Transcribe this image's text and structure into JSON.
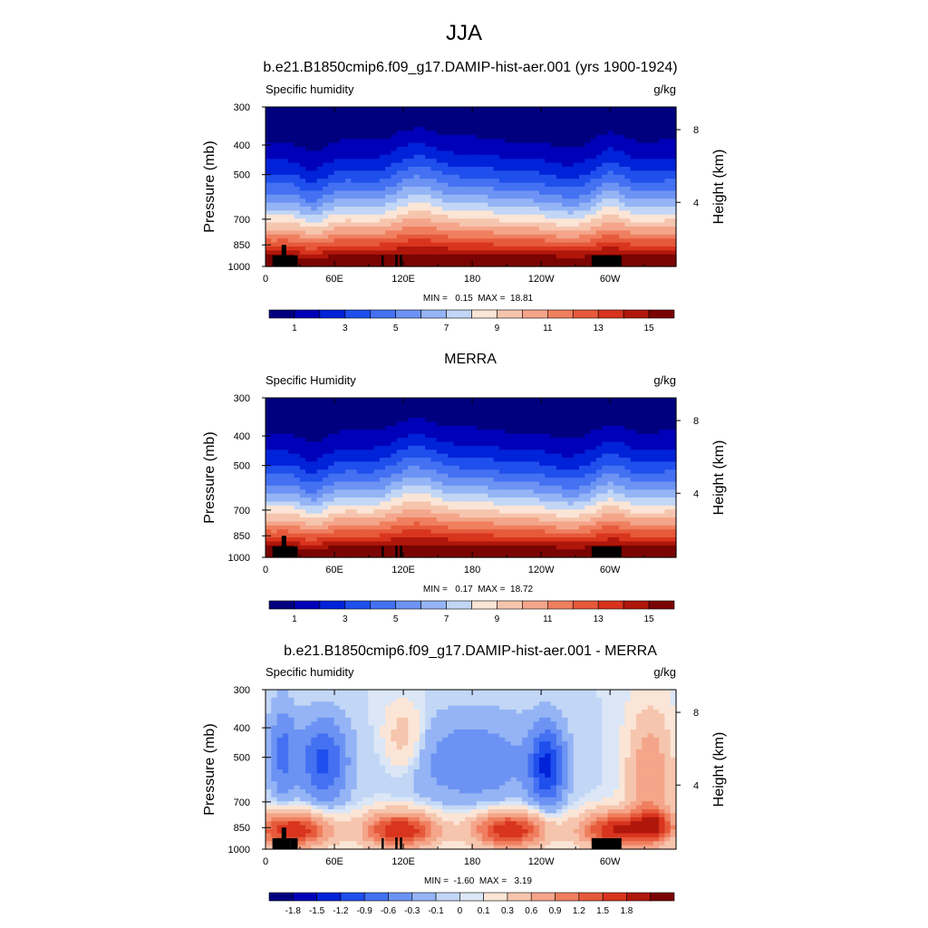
{
  "figure": {
    "title": "JJA"
  },
  "palettes": {
    "abs": [
      "#00007f",
      "#0000b8",
      "#0022d8",
      "#1f4fec",
      "#4471f2",
      "#6c93f3",
      "#94b4f5",
      "#c2d6f6",
      "#fbe5d6",
      "#f6c5ae",
      "#f4a58a",
      "#ef7f5f",
      "#e65a3b",
      "#d8341e",
      "#b0170b",
      "#7a0403"
    ],
    "diff": [
      "#00007f",
      "#0000b8",
      "#0022d8",
      "#1f4fec",
      "#4471f2",
      "#6c93f3",
      "#94b4f5",
      "#c2d6f6",
      "#dbe6f6",
      "#fbe5d6",
      "#f6c5ae",
      "#f4a58a",
      "#ef7f5f",
      "#e65a3b",
      "#d8341e",
      "#b0170b",
      "#7a0403"
    ]
  },
  "chart_data": [
    {
      "type": "heatmap",
      "panel_title": "b.e21.B1850cmip6.f09_g17.DAMIP-hist-aer.001 (yrs 1900-1924)",
      "left_label": "Specific humidity",
      "right_label": "g/kg",
      "ylabel": "Pressure (mb)",
      "y2label": "Height (km)",
      "x_ticks": [
        "0",
        "60E",
        "120E",
        "180",
        "120W",
        "60W"
      ],
      "x_tick_values": [
        0,
        60,
        120,
        180,
        240,
        300
      ],
      "xlim": [
        0,
        357.5
      ],
      "y_ticks": [
        "300",
        "400",
        "500",
        "700",
        "850",
        "1000"
      ],
      "y_tick_values": [
        300,
        400,
        500,
        700,
        850,
        1000
      ],
      "ylim": [
        300,
        1000
      ],
      "y2_ticks": [
        "8",
        "4"
      ],
      "y2_tick_values": [
        8,
        4
      ],
      "stats": "MIN =   0.15  MAX =  18.81",
      "min": 0.15,
      "max": 18.81,
      "colorbar_levels": [
        0,
        1,
        2,
        3,
        4,
        5,
        6,
        7,
        8,
        9,
        10,
        11,
        12,
        13,
        14,
        15
      ],
      "colorbar_labels": [
        "1",
        "3",
        "5",
        "7",
        "9",
        "11",
        "13",
        "15"
      ],
      "palette": "abs",
      "field": "model"
    },
    {
      "type": "heatmap",
      "panel_title": "MERRA",
      "left_label": "Specific Humidity",
      "right_label": "g/kg",
      "ylabel": "Pressure (mb)",
      "y2label": "Height (km)",
      "x_ticks": [
        "0",
        "60E",
        "120E",
        "180",
        "120W",
        "60W"
      ],
      "x_tick_values": [
        0,
        60,
        120,
        180,
        240,
        300
      ],
      "xlim": [
        0,
        357.5
      ],
      "y_ticks": [
        "300",
        "400",
        "500",
        "700",
        "850",
        "1000"
      ],
      "y_tick_values": [
        300,
        400,
        500,
        700,
        850,
        1000
      ],
      "ylim": [
        300,
        1000
      ],
      "y2_ticks": [
        "8",
        "4"
      ],
      "y2_tick_values": [
        8,
        4
      ],
      "stats": "MIN =   0.17  MAX =  18.72",
      "min": 0.17,
      "max": 18.72,
      "colorbar_levels": [
        0,
        1,
        2,
        3,
        4,
        5,
        6,
        7,
        8,
        9,
        10,
        11,
        12,
        13,
        14,
        15
      ],
      "colorbar_labels": [
        "1",
        "3",
        "5",
        "7",
        "9",
        "11",
        "13",
        "15"
      ],
      "palette": "abs",
      "field": "obs"
    },
    {
      "type": "heatmap",
      "panel_title": "b.e21.B1850cmip6.f09_g17.DAMIP-hist-aer.001 - MERRA",
      "left_label": "Specific humidity",
      "right_label": "g/kg",
      "ylabel": "Pressure (mb)",
      "y2label": "Height (km)",
      "x_ticks": [
        "0",
        "60E",
        "120E",
        "180",
        "120W",
        "60W"
      ],
      "x_tick_values": [
        0,
        60,
        120,
        180,
        240,
        300
      ],
      "xlim": [
        0,
        357.5
      ],
      "y_ticks": [
        "300",
        "400",
        "500",
        "700",
        "850",
        "1000"
      ],
      "y_tick_values": [
        300,
        400,
        500,
        700,
        850,
        1000
      ],
      "ylim": [
        300,
        1000
      ],
      "y2_ticks": [
        "8",
        "4"
      ],
      "y2_tick_values": [
        8,
        4
      ],
      "stats": "MIN =  -1.60  MAX =   3.19",
      "min": -1.6,
      "max": 3.19,
      "colorbar_levels": [
        -1.8,
        -1.5,
        -1.2,
        -0.9,
        -0.6,
        -0.3,
        -0.1,
        0,
        0.1,
        0.3,
        0.6,
        0.9,
        1.2,
        1.5,
        1.8
      ],
      "colorbar_labels": [
        "-1.8",
        "-1.5",
        "-1.2",
        "-0.9",
        "-0.6",
        "-0.3",
        "-0.1",
        "0",
        "0.1",
        "0.3",
        "0.6",
        "0.9",
        "1.2",
        "1.5",
        "1.8"
      ],
      "palette": "diff",
      "field": "diff"
    }
  ],
  "terrain": [
    {
      "lon": [
        6,
        22
      ],
      "top": 920
    },
    {
      "lon": [
        14,
        18
      ],
      "top": 850
    },
    {
      "lon": [
        22,
        28
      ],
      "top": 920
    },
    {
      "lon": [
        101,
        103
      ],
      "top": 920
    },
    {
      "lon": [
        113,
        115
      ],
      "top": 915
    },
    {
      "lon": [
        117,
        119
      ],
      "top": 915
    },
    {
      "lon": [
        284,
        310
      ],
      "top": 920
    }
  ]
}
